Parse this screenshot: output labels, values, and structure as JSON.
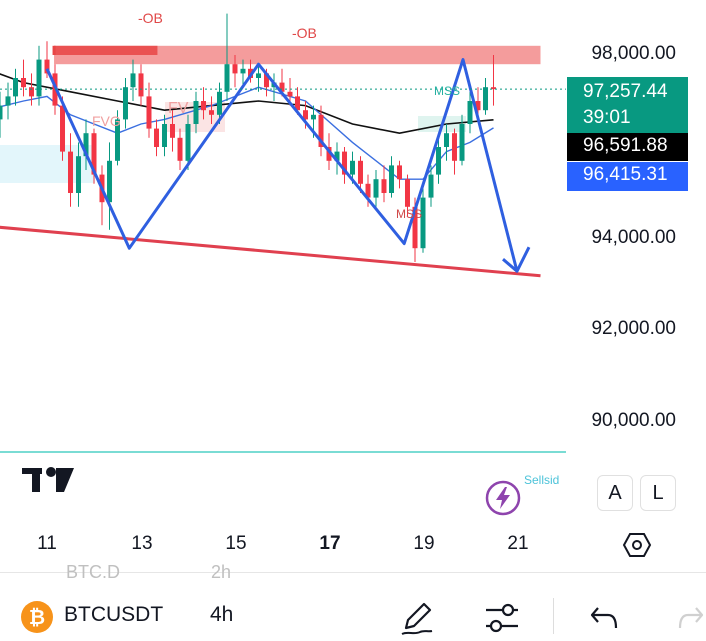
{
  "chart_data": {
    "type": "candlestick",
    "symbol": "BTCUSDT",
    "interval": "4h",
    "y_range": [
      88800,
      99200
    ],
    "y_ticks": [
      {
        "value": 98000,
        "label": "98,000.00"
      },
      {
        "value": 94000,
        "label": "94,000.00"
      },
      {
        "value": 92000,
        "label": "92,000.00"
      },
      {
        "value": 90000,
        "label": "90,000.00"
      }
    ],
    "x_ticks": [
      {
        "day": 11,
        "label": "11",
        "bold": false
      },
      {
        "day": 13,
        "label": "13",
        "bold": false
      },
      {
        "day": 15,
        "label": "15",
        "bold": false
      },
      {
        "day": 17,
        "label": "17",
        "bold": true
      },
      {
        "day": 19,
        "label": "19",
        "bold": false
      },
      {
        "day": 21,
        "label": "21",
        "bold": false
      }
    ],
    "price_tags": {
      "last": {
        "price": "97,257.44",
        "countdown": "39:01",
        "color": "#089981"
      },
      "ma_black": {
        "price": "96,591.88",
        "color": "#000000"
      },
      "ma_blue": {
        "price": "96,415.31",
        "color": "#2962ff"
      }
    },
    "annotations": {
      "ob_left": "-OB",
      "ob_right": "-OB",
      "fvg_left": "FVG",
      "fvg_mid": "FV",
      "mss_right": "MSS",
      "mss_bottom": "MSS"
    },
    "candles": [
      [
        10.0,
        96600,
        97200,
        96200,
        96900
      ],
      [
        10.17,
        96900,
        97400,
        96600,
        97100
      ],
      [
        10.33,
        97100,
        97700,
        96900,
        97500
      ],
      [
        10.5,
        97500,
        97900,
        97100,
        97300
      ],
      [
        10.67,
        97300,
        97600,
        96900,
        97100
      ],
      [
        10.83,
        97100,
        98200,
        96900,
        97900
      ],
      [
        11.0,
        97900,
        98300,
        97500,
        97600
      ],
      [
        11.17,
        97600,
        97800,
        96700,
        96900
      ],
      [
        11.33,
        96900,
        97100,
        95700,
        95900
      ],
      [
        11.5,
        95900,
        96300,
        94700,
        95000
      ],
      [
        11.67,
        95000,
        96100,
        94700,
        95800
      ],
      [
        11.83,
        95800,
        96600,
        95500,
        96300
      ],
      [
        12.0,
        96300,
        96400,
        95200,
        95400
      ],
      [
        12.17,
        95400,
        95600,
        94300,
        94800
      ],
      [
        12.33,
        94800,
        96100,
        94200,
        95700
      ],
      [
        12.5,
        95700,
        96800,
        95600,
        96600
      ],
      [
        12.67,
        96600,
        97500,
        96400,
        97300
      ],
      [
        12.83,
        97300,
        97900,
        97000,
        97600
      ],
      [
        13.0,
        97600,
        97800,
        96900,
        97100
      ],
      [
        13.17,
        97100,
        97400,
        96200,
        96400
      ],
      [
        13.33,
        96400,
        96600,
        95800,
        96000
      ],
      [
        13.5,
        96000,
        96700,
        95800,
        96500
      ],
      [
        13.67,
        96500,
        96800,
        95900,
        96200
      ],
      [
        13.83,
        96200,
        96400,
        95500,
        95700
      ],
      [
        14.0,
        95700,
        96700,
        95500,
        96500
      ],
      [
        14.17,
        96500,
        97200,
        96300,
        97000
      ],
      [
        14.33,
        97000,
        97300,
        96600,
        96800
      ],
      [
        14.5,
        96800,
        97100,
        96500,
        96700
      ],
      [
        14.67,
        96700,
        97400,
        96500,
        97200
      ],
      [
        14.83,
        97200,
        98900,
        97000,
        97800
      ],
      [
        15.0,
        97800,
        98000,
        97300,
        97600
      ],
      [
        15.17,
        97600,
        97900,
        97300,
        97700
      ],
      [
        15.33,
        97700,
        97900,
        97400,
        97500
      ],
      [
        15.5,
        97500,
        97800,
        97200,
        97600
      ],
      [
        15.67,
        97600,
        97700,
        97100,
        97300
      ],
      [
        15.83,
        97300,
        97600,
        97000,
        97400
      ],
      [
        16.0,
        97400,
        97700,
        97100,
        97200
      ],
      [
        16.17,
        97200,
        97500,
        96900,
        97100
      ],
      [
        16.33,
        97100,
        97300,
        96700,
        96800
      ],
      [
        16.5,
        96800,
        97000,
        96400,
        96600
      ],
      [
        16.67,
        96600,
        96900,
        96200,
        96700
      ],
      [
        16.83,
        96700,
        96900,
        95800,
        96000
      ],
      [
        17.0,
        96000,
        96300,
        95500,
        95700
      ],
      [
        17.17,
        95700,
        96100,
        95400,
        95900
      ],
      [
        17.33,
        95900,
        96000,
        95200,
        95400
      ],
      [
        17.5,
        95400,
        95900,
        95200,
        95700
      ],
      [
        17.67,
        95700,
        95800,
        95000,
        95200
      ],
      [
        17.83,
        95200,
        95400,
        94700,
        94900
      ],
      [
        18.0,
        94900,
        95500,
        94700,
        95300
      ],
      [
        18.17,
        95300,
        95600,
        94800,
        95000
      ],
      [
        18.33,
        95000,
        95800,
        94900,
        95600
      ],
      [
        18.5,
        95600,
        95700,
        95100,
        95300
      ],
      [
        18.67,
        95300,
        95400,
        94500,
        94700
      ],
      [
        18.83,
        94700,
        94900,
        93500,
        93800
      ],
      [
        19.0,
        93800,
        95100,
        93700,
        94900
      ],
      [
        19.17,
        94900,
        95600,
        94700,
        95400
      ],
      [
        19.33,
        95400,
        96200,
        95200,
        96000
      ],
      [
        19.5,
        96000,
        96500,
        95700,
        96300
      ],
      [
        19.67,
        96300,
        96400,
        95400,
        95700
      ],
      [
        19.83,
        95700,
        96700,
        95600,
        96500
      ],
      [
        20.0,
        96500,
        97200,
        96300,
        97000
      ],
      [
        20.17,
        97000,
        97300,
        96600,
        96800
      ],
      [
        20.33,
        96800,
        97500,
        96700,
        97300
      ],
      [
        20.5,
        97300,
        98000,
        96900,
        97257
      ]
    ],
    "ma_black": [
      [
        9.7,
        97700
      ],
      [
        10.5,
        97400
      ],
      [
        11.5,
        97200
      ],
      [
        12.5,
        97000
      ],
      [
        13.5,
        96800
      ],
      [
        14.5,
        96900
      ],
      [
        15.5,
        97000
      ],
      [
        16.5,
        96900
      ],
      [
        17.5,
        96500
      ],
      [
        18.5,
        96300
      ],
      [
        19.5,
        96500
      ],
      [
        20.5,
        96592
      ]
    ],
    "ma_blue": [
      [
        9.7,
        96800
      ],
      [
        10.5,
        97000
      ],
      [
        11.0,
        97100
      ],
      [
        11.5,
        96700
      ],
      [
        12.5,
        96300
      ],
      [
        13.0,
        96500
      ],
      [
        13.5,
        96600
      ],
      [
        14.5,
        96900
      ],
      [
        15.5,
        97300
      ],
      [
        16.5,
        97000
      ],
      [
        17.5,
        96100
      ],
      [
        18.5,
        95300
      ],
      [
        19.0,
        95300
      ],
      [
        19.5,
        95900
      ],
      [
        20.0,
        96100
      ],
      [
        20.5,
        96415
      ]
    ],
    "zigzag": [
      [
        11.0,
        97700
      ],
      [
        12.75,
        93800
      ],
      [
        15.5,
        97800
      ],
      [
        18.6,
        93900
      ],
      [
        19.85,
        97900
      ],
      [
        21.0,
        93300
      ]
    ],
    "trendline": [
      [
        9.5,
        94300
      ],
      [
        21.5,
        93200
      ]
    ],
    "ob_zone_right": {
      "x": [
        11.15,
        21.5
      ],
      "y": [
        97800,
        98200
      ]
    },
    "ob_zone_left": {
      "x": [
        11.15,
        13.35
      ],
      "y": [
        98000,
        98200
      ]
    }
  },
  "toolbar": {
    "symbol": "BTCUSDT",
    "interval": "4h",
    "ghost_left": "BTC.D",
    "ghost_right": "2h",
    "badge_text": "Sellsid",
    "btn_a": "A",
    "btn_l": "L"
  }
}
